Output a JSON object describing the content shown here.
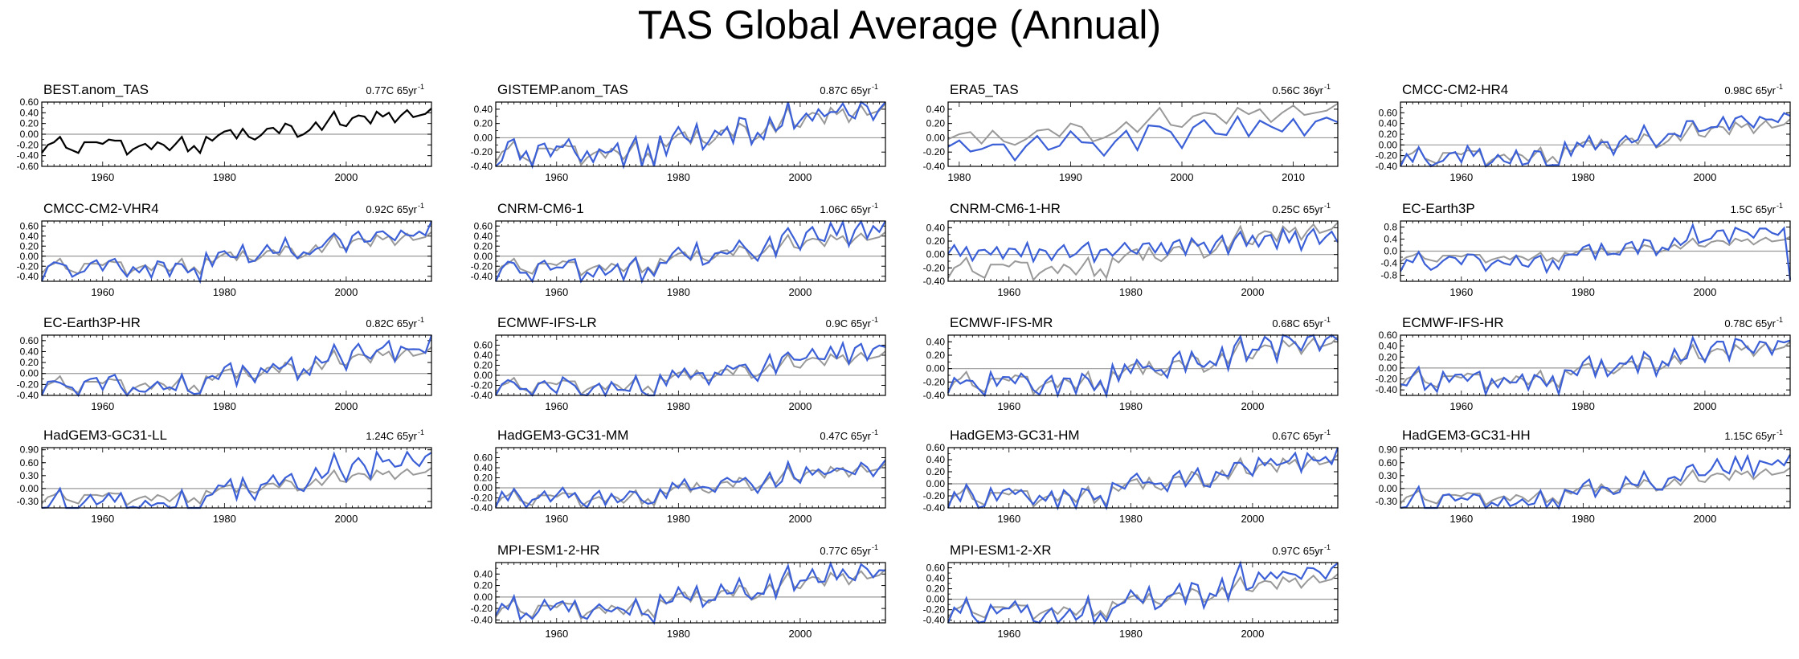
{
  "figure": {
    "title": "TAS Global Average (Annual)",
    "colors": {
      "reference": "#999999",
      "model": "#3b5fd6",
      "observation": "#000000",
      "zero_line": "#9a9a9a"
    }
  },
  "chart_data": [
    {
      "type": "line",
      "name": "BEST.anom_TAS",
      "trend": "0.77C 65yr",
      "trend_exp": "-1",
      "x_start": 1950,
      "x_end": 2014,
      "xticks": [
        1960,
        1980,
        2000
      ],
      "ylim": [
        -0.6,
        0.6
      ],
      "yticks": [
        -0.6,
        -0.4,
        -0.2,
        0.0,
        0.2,
        0.4,
        0.6
      ],
      "ytick_labels": [
        "-0.60",
        "-0.40",
        "-0.20",
        "0.00",
        "0.20",
        "0.40",
        "0.60"
      ],
      "kind": "observation"
    },
    {
      "type": "line",
      "name": "GISTEMP.anom_TAS",
      "trend": "0.87C 65yr",
      "trend_exp": "-1",
      "x_start": 1950,
      "x_end": 2014,
      "xticks": [
        1960,
        1980,
        2000
      ],
      "ylim": [
        -0.4,
        0.5
      ],
      "yticks": [
        -0.4,
        -0.2,
        0.0,
        0.2,
        0.4
      ],
      "ytick_labels": [
        "-0.40",
        "-0.20",
        "0.00",
        "0.20",
        "0.40"
      ],
      "model_amp": 1.0,
      "model_offset": 0.0
    },
    {
      "type": "line",
      "name": "ERA5_TAS",
      "trend": "0.56C 36yr",
      "trend_exp": "-1",
      "x_start": 1979,
      "x_end": 2014,
      "xticks": [
        1980,
        1990,
        2000,
        2010
      ],
      "ylim": [
        -0.4,
        0.5
      ],
      "yticks": [
        -0.4,
        -0.2,
        0.0,
        0.2,
        0.4
      ],
      "ytick_labels": [
        "-0.40",
        "-0.20",
        "0.00",
        "0.20",
        "0.40"
      ],
      "model_amp": 0.85,
      "model_offset": -0.15
    },
    {
      "type": "line",
      "name": "CMCC-CM2-HR4",
      "trend": "0.98C 65yr",
      "trend_exp": "-1",
      "x_start": 1950,
      "x_end": 2014,
      "xticks": [
        1960,
        1980,
        2000
      ],
      "ylim": [
        -0.4,
        0.8
      ],
      "yticks": [
        -0.4,
        -0.2,
        0.0,
        0.2,
        0.4,
        0.6
      ],
      "ytick_labels": [
        "-0.40",
        "-0.20",
        "0.00",
        "0.20",
        "0.40",
        "0.60"
      ],
      "model_amp": 1.3,
      "model_offset": 0.0
    },
    {
      "type": "line",
      "name": "CMCC-CM2-VHR4",
      "trend": "0.92C 65yr",
      "trend_exp": "-1",
      "x_start": 1950,
      "x_end": 2014,
      "xticks": [
        1960,
        1980,
        2000
      ],
      "ylim": [
        -0.5,
        0.7
      ],
      "yticks": [
        -0.4,
        -0.2,
        0.0,
        0.2,
        0.4,
        0.6
      ],
      "ytick_labels": [
        "-0.40",
        "-0.20",
        "0.00",
        "0.20",
        "0.40",
        "0.60"
      ],
      "model_amp": 1.2,
      "model_offset": 0.0
    },
    {
      "type": "line",
      "name": "CNRM-CM6-1",
      "trend": "1.06C 65yr",
      "trend_exp": "-1",
      "x_start": 1950,
      "x_end": 2014,
      "xticks": [
        1960,
        1980,
        2000
      ],
      "ylim": [
        -0.5,
        0.7
      ],
      "yticks": [
        -0.4,
        -0.2,
        0.0,
        0.2,
        0.4,
        0.6
      ],
      "ytick_labels": [
        "-0.40",
        "-0.20",
        "0.00",
        "0.20",
        "0.40",
        "0.60"
      ],
      "model_amp": 1.4,
      "model_offset": 0.0
    },
    {
      "type": "line",
      "name": "CNRM-CM6-1-HR",
      "trend": "0.25C 65yr",
      "trend_exp": "-1",
      "x_start": 1950,
      "x_end": 2014,
      "xticks": [
        1960,
        1980,
        2000
      ],
      "ylim": [
        -0.4,
        0.5
      ],
      "yticks": [
        -0.4,
        -0.2,
        0.0,
        0.2,
        0.4
      ],
      "ytick_labels": [
        "-0.40",
        "-0.20",
        "0.00",
        "0.20",
        "0.40"
      ],
      "model_amp": 0.4,
      "model_offset": 0.1
    },
    {
      "type": "line",
      "name": "EC-Earth3P",
      "trend": "1.5C 65yr",
      "trend_exp": "-1",
      "x_start": 1950,
      "x_end": 2014,
      "xticks": [
        1960,
        1980,
        2000
      ],
      "ylim": [
        -1.0,
        1.0
      ],
      "yticks": [
        -0.8,
        -0.4,
        0.0,
        0.4,
        0.8
      ],
      "ytick_labels": [
        "-0.8",
        "-0.4",
        "0.0",
        "0.4",
        "0.8"
      ],
      "model_amp": 1.8,
      "model_offset": 0.0,
      "last_drop": -0.95
    },
    {
      "type": "line",
      "name": "EC-Earth3P-HR",
      "trend": "0.82C 65yr",
      "trend_exp": "-1",
      "x_start": 1950,
      "x_end": 2014,
      "xticks": [
        1960,
        1980,
        2000
      ],
      "ylim": [
        -0.4,
        0.7
      ],
      "yticks": [
        -0.4,
        -0.2,
        0.0,
        0.2,
        0.4,
        0.6
      ],
      "ytick_labels": [
        "-0.40",
        "-0.20",
        "0.00",
        "0.20",
        "0.40",
        "0.60"
      ],
      "model_amp": 1.2,
      "model_offset": 0.0
    },
    {
      "type": "line",
      "name": "ECMWF-IFS-LR",
      "trend": "0.9C 65yr",
      "trend_exp": "-1",
      "x_start": 1950,
      "x_end": 2014,
      "xticks": [
        1960,
        1980,
        2000
      ],
      "ylim": [
        -0.4,
        0.8
      ],
      "yticks": [
        -0.4,
        -0.2,
        0.0,
        0.2,
        0.4,
        0.6
      ],
      "ytick_labels": [
        "-0.40",
        "-0.20",
        "0.00",
        "0.20",
        "0.40",
        "0.60"
      ],
      "model_amp": 1.3,
      "model_offset": 0.0
    },
    {
      "type": "line",
      "name": "ECMWF-IFS-MR",
      "trend": "0.68C 65yr",
      "trend_exp": "-1",
      "x_start": 1950,
      "x_end": 2014,
      "xticks": [
        1960,
        1980,
        2000
      ],
      "ylim": [
        -0.4,
        0.5
      ],
      "yticks": [
        -0.4,
        -0.2,
        0.0,
        0.2,
        0.4
      ],
      "ytick_labels": [
        "-0.40",
        "-0.20",
        "0.00",
        "0.20",
        "0.40"
      ],
      "model_amp": 1.1,
      "model_offset": 0.0
    },
    {
      "type": "line",
      "name": "ECMWF-IFS-HR",
      "trend": "0.78C 65yr",
      "trend_exp": "-1",
      "x_start": 1950,
      "x_end": 2014,
      "xticks": [
        1960,
        1980,
        2000
      ],
      "ylim": [
        -0.5,
        0.6
      ],
      "yticks": [
        -0.4,
        -0.2,
        0.0,
        0.2,
        0.4,
        0.6
      ],
      "ytick_labels": [
        "-0.40",
        "-0.20",
        "0.00",
        "0.20",
        "0.40",
        "0.60"
      ],
      "model_amp": 1.15,
      "model_offset": 0.0
    },
    {
      "type": "line",
      "name": "HadGEM3-GC31-LL",
      "trend": "1.24C 65yr",
      "trend_exp": "-1",
      "x_start": 1950,
      "x_end": 2014,
      "xticks": [
        1960,
        1980,
        2000
      ],
      "ylim": [
        -0.45,
        0.95
      ],
      "yticks": [
        -0.3,
        0.0,
        0.3,
        0.6,
        0.9
      ],
      "ytick_labels": [
        "-0.30",
        "0.00",
        "0.30",
        "0.60",
        "0.90"
      ],
      "model_amp": 1.8,
      "model_offset": 0.0
    },
    {
      "type": "line",
      "name": "HadGEM3-GC31-MM",
      "trend": "0.47C 65yr",
      "trend_exp": "-1",
      "x_start": 1950,
      "x_end": 2014,
      "xticks": [
        1960,
        1980,
        2000
      ],
      "ylim": [
        -0.4,
        0.8
      ],
      "yticks": [
        -0.4,
        -0.2,
        0.0,
        0.2,
        0.4,
        0.6
      ],
      "ytick_labels": [
        "-0.40",
        "-0.20",
        "0.00",
        "0.20",
        "0.40",
        "0.60"
      ],
      "model_amp": 1.0,
      "model_offset": 0.0
    },
    {
      "type": "line",
      "name": "HadGEM3-GC31-HM",
      "trend": "0.67C 65yr",
      "trend_exp": "-1",
      "x_start": 1950,
      "x_end": 2014,
      "xticks": [
        1960,
        1980,
        2000
      ],
      "ylim": [
        -0.4,
        0.6
      ],
      "yticks": [
        -0.4,
        -0.2,
        0.0,
        0.2,
        0.4,
        0.6
      ],
      "ytick_labels": [
        "-0.40",
        "-0.20",
        "0.00",
        "0.20",
        "0.40",
        "0.60"
      ],
      "model_amp": 1.1,
      "model_offset": 0.0
    },
    {
      "type": "line",
      "name": "HadGEM3-GC31-HH",
      "trend": "1.15C 65yr",
      "trend_exp": "-1",
      "x_start": 1950,
      "x_end": 2014,
      "xticks": [
        1960,
        1980,
        2000
      ],
      "ylim": [
        -0.45,
        0.95
      ],
      "yticks": [
        -0.3,
        0.0,
        0.3,
        0.6,
        0.9
      ],
      "ytick_labels": [
        "-0.30",
        "0.00",
        "0.30",
        "0.60",
        "0.90"
      ],
      "model_amp": 1.6,
      "model_offset": 0.0
    },
    {
      "type": "line",
      "name": "MPI-ESM1-2-HR",
      "trend": "0.77C 65yr",
      "trend_exp": "-1",
      "x_start": 1950,
      "x_end": 2014,
      "xticks": [
        1960,
        1980,
        2000
      ],
      "ylim": [
        -0.45,
        0.6
      ],
      "yticks": [
        -0.4,
        -0.2,
        0.0,
        0.2,
        0.4
      ],
      "ytick_labels": [
        "-0.40",
        "-0.20",
        "0.00",
        "0.20",
        "0.40"
      ],
      "model_amp": 1.15,
      "model_offset": 0.0
    },
    {
      "type": "line",
      "name": "MPI-ESM1-2-XR",
      "trend": "0.97C 65yr",
      "trend_exp": "-1",
      "x_start": 1950,
      "x_end": 2014,
      "xticks": [
        1960,
        1980,
        2000
      ],
      "ylim": [
        -0.45,
        0.7
      ],
      "yticks": [
        -0.4,
        -0.2,
        0.0,
        0.2,
        0.4,
        0.6
      ],
      "ytick_labels": [
        "-0.40",
        "-0.20",
        "0.00",
        "0.20",
        "0.40",
        "0.60"
      ],
      "model_amp": 1.4,
      "model_offset": 0.0
    }
  ],
  "reference_series": {
    "years_start": 1950,
    "values": [
      -0.35,
      -0.2,
      -0.15,
      -0.05,
      -0.25,
      -0.3,
      -0.35,
      -0.15,
      -0.15,
      -0.15,
      -0.18,
      -0.1,
      -0.12,
      -0.12,
      -0.38,
      -0.28,
      -0.22,
      -0.18,
      -0.28,
      -0.15,
      -0.2,
      -0.3,
      -0.18,
      -0.05,
      -0.32,
      -0.22,
      -0.35,
      -0.05,
      -0.12,
      -0.02,
      0.05,
      0.08,
      -0.08,
      0.1,
      -0.05,
      -0.1,
      -0.02,
      0.1,
      0.12,
      0.02,
      0.2,
      0.15,
      -0.05,
      0.0,
      0.08,
      0.22,
      0.08,
      0.25,
      0.42,
      0.18,
      0.15,
      0.3,
      0.35,
      0.33,
      0.2,
      0.42,
      0.33,
      0.4,
      0.22,
      0.35,
      0.45,
      0.32,
      0.35,
      0.38,
      0.48
    ]
  },
  "model_noise": {
    "values": [
      0.1,
      -0.08,
      0.05,
      0.12,
      -0.1,
      0.02,
      0.08,
      -0.06,
      -0.12,
      0.09,
      0.03,
      -0.05,
      0.11,
      -0.09,
      0.04,
      0.07,
      -0.11,
      0.06,
      -0.03,
      0.1,
      -0.08,
      0.05,
      0.09,
      -0.12,
      0.02,
      0.07,
      -0.04,
      0.12,
      -0.1,
      0.03,
      0.06,
      -0.09,
      0.11,
      -0.05,
      0.08,
      -0.12,
      0.04,
      0.1,
      -0.07,
      0.02,
      0.09,
      -0.11,
      0.05,
      0.12,
      -0.06,
      0.03,
      -0.09,
      0.08,
      0.11,
      -0.04,
      0.07,
      -0.1,
      0.06,
      0.02,
      -0.08,
      0.12,
      -0.05,
      0.09,
      0.04,
      -0.11,
      0.07,
      0.1,
      -0.06,
      0.03,
      0.08
    ]
  }
}
